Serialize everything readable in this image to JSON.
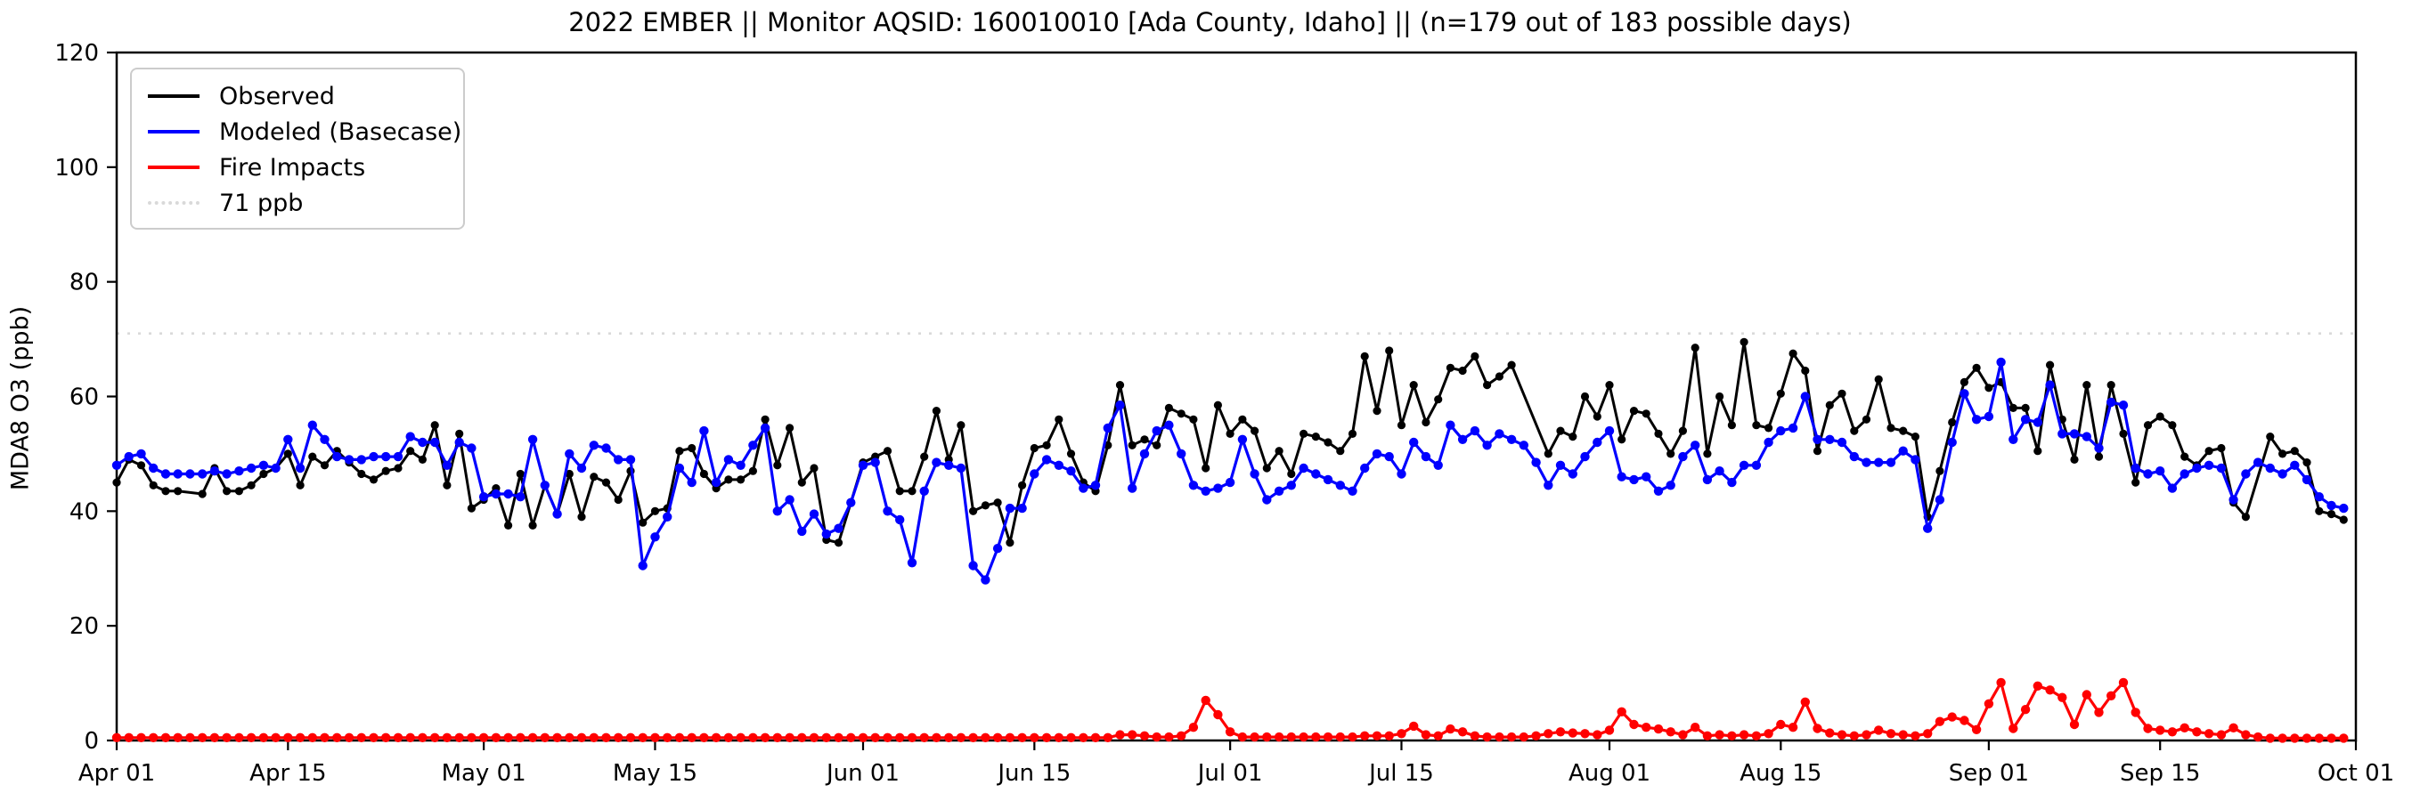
{
  "chart_data": {
    "type": "line",
    "title": "2022 EMBER || Monitor AQSID: 160010010 [Ada County, Idaho] || (n=179 out of 183 possible days)",
    "ylabel": "MDA8 O3 (ppb)",
    "xlabel": "",
    "ylim": [
      0,
      120
    ],
    "yticks": [
      0,
      20,
      40,
      60,
      80,
      100,
      120
    ],
    "x_start_date": "Apr 01",
    "x_end_date": "Oct 01",
    "x_total_days": 183,
    "n_observed_days": 179,
    "grid": "off",
    "legend_position": "upper left",
    "xticks": [
      {
        "day": 0,
        "label": "Apr 01"
      },
      {
        "day": 14,
        "label": "Apr 15"
      },
      {
        "day": 30,
        "label": "May 01"
      },
      {
        "day": 44,
        "label": "May 15"
      },
      {
        "day": 61,
        "label": "Jun 01"
      },
      {
        "day": 75,
        "label": "Jun 15"
      },
      {
        "day": 91,
        "label": "Jul 01"
      },
      {
        "day": 105,
        "label": "Jul 15"
      },
      {
        "day": 122,
        "label": "Aug 01"
      },
      {
        "day": 136,
        "label": "Aug 15"
      },
      {
        "day": 153,
        "label": "Sep 01"
      },
      {
        "day": 167,
        "label": "Sep 15"
      },
      {
        "day": 183,
        "label": "Oct 01"
      }
    ],
    "threshold": {
      "value": 71,
      "label": "71 ppb",
      "color": "#d9d9d9",
      "style": "dotted"
    },
    "series": [
      {
        "name": "Observed",
        "color": "#000000",
        "values": [
          45,
          49,
          48,
          44.5,
          43.5,
          43.5,
          null,
          43,
          47.5,
          43.5,
          43.5,
          44.5,
          46.5,
          47.5,
          50,
          44.5,
          49.5,
          48,
          50.5,
          48.5,
          46.5,
          45.5,
          47,
          47.5,
          50.5,
          49,
          55,
          44.5,
          53.5,
          40.5,
          42,
          44,
          37.5,
          46.5,
          37.5,
          44.5,
          39.5,
          46.5,
          39,
          46,
          45,
          42,
          47,
          38,
          40,
          40.5,
          50.5,
          51,
          46.5,
          44,
          45.5,
          45.5,
          47,
          56,
          48,
          54.5,
          45,
          47.5,
          35,
          34.5,
          41.5,
          48.5,
          49.5,
          50.5,
          43.5,
          43.5,
          49.5,
          57.5,
          49,
          55,
          40,
          41,
          41.5,
          34.5,
          44.5,
          51,
          51.5,
          56,
          50,
          45,
          43.5,
          51.5,
          62,
          51.5,
          52.5,
          51.5,
          58,
          57,
          56,
          47.5,
          58.5,
          53.5,
          56,
          54,
          47.5,
          50.5,
          46.5,
          53.5,
          53,
          52,
          50.5,
          53.5,
          67,
          57.5,
          68,
          55,
          62,
          55.5,
          59.5,
          65,
          64.5,
          67,
          62,
          63.5,
          65.5,
          null,
          null,
          50,
          54,
          53,
          60,
          56.5,
          62,
          52.5,
          57.5,
          57,
          53.5,
          50,
          54,
          68.5,
          50,
          60,
          55,
          69.5,
          55,
          54.5,
          60.5,
          67.5,
          64.5,
          50.5,
          58.5,
          60.5,
          54,
          56,
          63,
          54.5,
          54,
          53,
          39,
          47,
          55.5,
          62.5,
          65,
          61.5,
          62.5,
          58,
          58,
          50.5,
          65.5,
          56,
          49,
          62,
          49.5,
          62,
          53.5,
          45,
          55,
          56.5,
          55,
          49.5,
          48,
          50.5,
          51,
          41.5,
          39,
          null,
          53,
          50,
          50.5,
          48.5,
          40,
          39.5,
          38.5
        ]
      },
      {
        "name": "Modeled (Basecase)",
        "color": "#0000ff",
        "values": [
          48,
          49.5,
          50,
          47.5,
          46.5,
          46.5,
          46.5,
          46.5,
          47,
          46.5,
          47,
          47.5,
          48,
          47.5,
          52.5,
          47.5,
          55,
          52.5,
          49.5,
          49,
          49,
          49.5,
          49.5,
          49.5,
          53,
          52,
          52,
          48,
          52,
          51,
          42.5,
          43,
          43,
          42.5,
          52.5,
          44.5,
          39.5,
          50,
          47.5,
          51.5,
          51,
          49,
          49,
          30.5,
          35.5,
          39,
          47.5,
          45,
          54,
          45,
          49,
          48,
          51.5,
          54.5,
          40,
          42,
          36.5,
          39.5,
          36,
          37,
          41.5,
          48,
          48.5,
          40,
          38.5,
          31,
          43.5,
          48.5,
          48,
          47.5,
          30.5,
          28,
          33.5,
          40.5,
          40.5,
          46.5,
          49,
          48,
          47,
          44,
          44.5,
          54.5,
          58.5,
          44,
          50,
          54,
          55,
          50,
          44.5,
          43.5,
          44,
          45,
          52.5,
          46.5,
          42,
          43.5,
          44.5,
          47.5,
          46.5,
          45.5,
          44.5,
          43.5,
          47.5,
          50,
          49.5,
          46.5,
          52,
          49.5,
          48,
          55,
          52.5,
          54,
          51.5,
          53.5,
          52.5,
          51.5,
          48.5,
          44.5,
          48,
          46.5,
          49.5,
          52,
          54,
          46,
          45.5,
          46,
          43.5,
          44.5,
          49.5,
          51.5,
          45.5,
          47,
          45,
          48,
          48,
          52,
          54,
          54.5,
          60,
          52.5,
          52.5,
          52,
          49.5,
          48.5,
          48.5,
          48.5,
          50.5,
          49,
          37,
          42,
          52,
          60.5,
          56,
          56.5,
          66,
          52.5,
          56,
          55.5,
          62,
          53.5,
          53.5,
          53,
          51,
          59,
          58.5,
          47.5,
          46.5,
          47,
          44,
          46.5,
          47.5,
          48,
          47.5,
          42,
          46.5,
          48.5,
          47.5,
          46.5,
          48,
          45.5,
          42.5,
          41,
          40.5
        ]
      },
      {
        "name": "Fire Impacts",
        "color": "#ff0000",
        "values": [
          0.5,
          0.5,
          0.5,
          0.5,
          0.5,
          0.5,
          0.5,
          0.5,
          0.5,
          0.5,
          0.5,
          0.5,
          0.5,
          0.5,
          0.5,
          0.5,
          0.5,
          0.5,
          0.5,
          0.5,
          0.5,
          0.5,
          0.5,
          0.5,
          0.5,
          0.5,
          0.5,
          0.5,
          0.5,
          0.5,
          0.5,
          0.5,
          0.5,
          0.5,
          0.5,
          0.5,
          0.5,
          0.5,
          0.5,
          0.5,
          0.5,
          0.5,
          0.5,
          0.5,
          0.5,
          0.5,
          0.5,
          0.5,
          0.5,
          0.5,
          0.5,
          0.5,
          0.5,
          0.5,
          0.5,
          0.5,
          0.5,
          0.5,
          0.5,
          0.5,
          0.5,
          0.5,
          0.5,
          0.5,
          0.5,
          0.5,
          0.5,
          0.5,
          0.5,
          0.5,
          0.5,
          0.5,
          0.5,
          0.5,
          0.5,
          0.5,
          0.5,
          0.5,
          0.5,
          0.5,
          0.5,
          0.5,
          1,
          1,
          0.8,
          0.6,
          0.6,
          0.8,
          2.3,
          7,
          4.5,
          1.5,
          0.6,
          0.6,
          0.6,
          0.6,
          0.6,
          0.6,
          0.6,
          0.6,
          0.6,
          0.6,
          0.8,
          0.8,
          0.8,
          1.2,
          2.5,
          1,
          0.8,
          2,
          1.5,
          0.8,
          0.6,
          0.6,
          0.6,
          0.6,
          0.8,
          1.2,
          1.5,
          1.3,
          1.2,
          1,
          1.8,
          5,
          2.8,
          2.3,
          2,
          1.5,
          1,
          2.3,
          0.8,
          1,
          0.8,
          1,
          0.8,
          1.2,
          2.8,
          2.3,
          6.7,
          2.1,
          1.3,
          1,
          0.8,
          1,
          1.8,
          1.2,
          1,
          0.8,
          1.2,
          3.3,
          4.1,
          3.5,
          1.9,
          6.4,
          10.1,
          2.1,
          5.4,
          9.5,
          8.8,
          7.5,
          2.8,
          8,
          4.9,
          7.8,
          10.1,
          4.9,
          2.1,
          1.8,
          1.5,
          2.2,
          1.5,
          1.2,
          1,
          2.2,
          1,
          0.6,
          0.4,
          0.4,
          0.4,
          0.4,
          0.4,
          0.4,
          0.4
        ]
      }
    ]
  }
}
